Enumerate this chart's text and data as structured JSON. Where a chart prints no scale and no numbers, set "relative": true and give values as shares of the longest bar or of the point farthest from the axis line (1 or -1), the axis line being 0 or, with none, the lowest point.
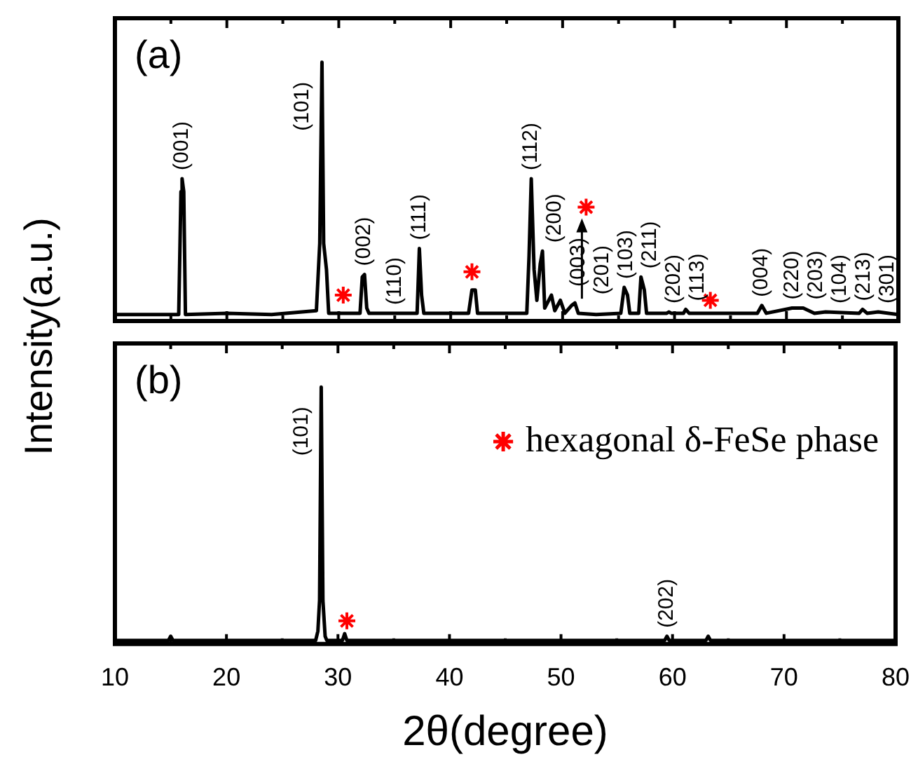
{
  "chart_data": [
    {
      "type": "line",
      "relative": true,
      "legend": false,
      "tick_labels": false,
      "ylabel": "Intensity(a.u.)",
      "xlim": [
        10,
        80
      ],
      "xticks": [
        10,
        {
          "value": 15,
          "label": null
        },
        20,
        {
          "value": 25,
          "label": null
        },
        30,
        {
          "value": 35,
          "label": null
        },
        40,
        {
          "value": 45,
          "label": null
        },
        50,
        {
          "value": 55,
          "label": null
        },
        60,
        {
          "value": 65,
          "label": null
        },
        70,
        {
          "value": 75,
          "label": null
        },
        80
      ],
      "series": [
        {
          "color": "#000000",
          "marker": "none",
          "x": [
            10,
            15.7,
            15.9,
            16.0,
            16.15,
            16.3,
            20,
            24,
            28.0,
            28.3,
            28.5,
            28.65,
            28.9,
            29.1,
            31.0,
            31.9,
            32.1,
            32.3,
            32.5,
            32.7,
            35,
            37.0,
            37.2,
            37.4,
            37.6,
            41.6,
            41.9,
            42.2,
            42.4,
            46.8,
            47.0,
            47.2,
            47.45,
            47.7,
            48.0,
            48.2,
            48.4,
            49.0,
            49.3,
            49.8,
            50.2,
            50.8,
            51.1,
            51.4,
            53,
            55.2,
            55.5,
            55.8,
            56.0,
            56.8,
            57.0,
            57.3,
            57.5,
            59.3,
            59.5,
            59.7,
            60.8,
            61.0,
            61.3,
            67.4,
            67.8,
            68.2,
            70.5,
            71.5,
            72.5,
            73.5,
            76.5,
            76.8,
            77.2,
            78.2,
            80
          ],
          "values": [
            0.025,
            0.025,
            0.5,
            0.55,
            0.5,
            0.025,
            0.03,
            0.025,
            0.04,
            0.3,
            1.0,
            0.3,
            0.2,
            0.03,
            0.03,
            0.03,
            0.17,
            0.18,
            0.05,
            0.03,
            0.03,
            0.03,
            0.28,
            0.1,
            0.03,
            0.03,
            0.12,
            0.12,
            0.03,
            0.03,
            0.25,
            0.55,
            0.2,
            0.08,
            0.22,
            0.27,
            0.05,
            0.1,
            0.04,
            0.08,
            0.03,
            0.06,
            0.07,
            0.03,
            0.025,
            0.03,
            0.13,
            0.1,
            0.03,
            0.03,
            0.17,
            0.12,
            0.03,
            0.03,
            0.035,
            0.03,
            0.03,
            0.045,
            0.03,
            0.03,
            0.06,
            0.03,
            0.05,
            0.05,
            0.03,
            0.035,
            0.03,
            0.045,
            0.03,
            0.035,
            0.025
          ]
        },
        {
          "type": "scatter",
          "color": "#ff0000",
          "marker": "cross",
          "x": [
            30.4,
            41.9,
            52.1,
            63.2
          ],
          "values": [
            0.1,
            0.19,
            0.44,
            0.08
          ]
        }
      ],
      "annotations": [
        "(a)",
        {
          "text": "(001)",
          "x": 16.0,
          "y": 0.55
        },
        {
          "text": "(101)",
          "x": 28.5,
          "y": 1.0
        },
        {
          "text": "(002)",
          "x": 32.3,
          "y": 0.18
        },
        {
          "text": "(110)",
          "x": 35,
          "y": 0.03
        },
        {
          "text": "(111)",
          "x": 37.2,
          "y": 0.28
        },
        {
          "text": "(112)",
          "x": 47.2,
          "y": 0.55
        },
        {
          "text": "(200)",
          "x": 48.2,
          "y": 0.27
        },
        {
          "text": "(003)",
          "x": 49.0,
          "y": 0.1
        },
        {
          "text": "(201)",
          "x": 51.1,
          "y": 0.07
        },
        {
          "text": "(103)",
          "x": 55.5,
          "y": 0.13
        },
        {
          "text": "(211)",
          "x": 57.0,
          "y": 0.17
        },
        {
          "text": "(202)",
          "x": 59.5,
          "y": 0.035
        },
        {
          "text": "(113)",
          "x": 61.0,
          "y": 0.045
        },
        {
          "text": "(004)",
          "x": 67.8,
          "y": 0.06
        },
        {
          "text": "(220)",
          "x": 70.5,
          "y": 0.05
        },
        {
          "text": "(203)",
          "x": 71.5,
          "y": 0.05
        },
        {
          "text": "(104)",
          "x": 73.5,
          "y": 0.035
        },
        {
          "text": "(213)",
          "x": 76.8,
          "y": 0.045
        },
        {
          "text": "(301)",
          "x": 78.2,
          "y": 0.035
        }
      ]
    },
    {
      "type": "line",
      "relative": true,
      "legend": "top right",
      "tick_labels": "x",
      "xlabel": "2θ(degree)",
      "xlim": [
        10,
        80
      ],
      "xticks": [
        10,
        {
          "value": 15,
          "label": null
        },
        20,
        {
          "value": 25,
          "label": null
        },
        30,
        {
          "value": 35,
          "label": null
        },
        40,
        {
          "value": 45,
          "label": null
        },
        50,
        {
          "value": 55,
          "label": null
        },
        60,
        {
          "value": 65,
          "label": null
        },
        70,
        {
          "value": 75,
          "label": null
        },
        80
      ],
      "series": [
        {
          "color": "#000000",
          "marker": "none",
          "x": [
            10,
            14.8,
            15.0,
            15.2,
            28.0,
            28.2,
            28.35,
            28.5,
            28.65,
            28.85,
            29.0,
            30.4,
            30.6,
            30.8,
            59.3,
            59.5,
            59.7,
            63.0,
            63.2,
            63.4,
            80
          ],
          "values": [
            0.014,
            0.014,
            0.03,
            0.014,
            0.014,
            0.05,
            0.17,
            1.0,
            0.17,
            0.03,
            0.014,
            0.014,
            0.04,
            0.014,
            0.014,
            0.03,
            0.014,
            0.014,
            0.03,
            0.014,
            0.014
          ]
        },
        {
          "type": "scatter",
          "name": "hexagonal δ-FeSe phase",
          "color": "#ff0000",
          "marker": "cross",
          "x": [
            30.8
          ],
          "values": [
            0.09
          ]
        }
      ],
      "annotations": [
        "(b)",
        {
          "text": "(101)",
          "x": 28.5,
          "y": 1.0
        },
        {
          "text": "(202)",
          "x": 59.5,
          "y": 0.03
        }
      ]
    }
  ]
}
